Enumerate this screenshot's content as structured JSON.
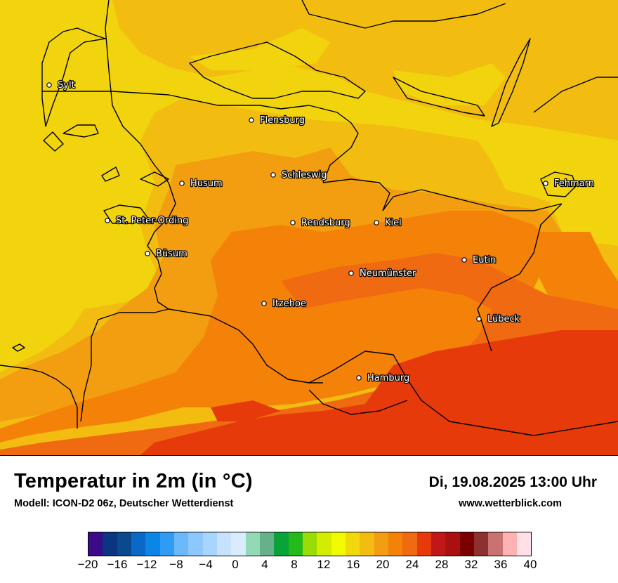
{
  "title": "Temperatur in 2m (in °C)",
  "subtitle": "Modell: ICON-D2 06z, Deutscher Wetterdienst",
  "datetime": "Di, 19.08.2025 13:00 Uhr",
  "website": "www.wetterblick.com",
  "cities": [
    {
      "name": "Sylt"
    },
    {
      "name": "Flensburg"
    },
    {
      "name": "Husum"
    },
    {
      "name": "Schleswig"
    },
    {
      "name": "Fehmarn"
    },
    {
      "name": "St. Peter-Ording"
    },
    {
      "name": "Rendsburg"
    },
    {
      "name": "Kiel"
    },
    {
      "name": "Büsum"
    },
    {
      "name": "Eutin"
    },
    {
      "name": "Neumünster"
    },
    {
      "name": "Itzehoe"
    },
    {
      "name": "Lübeck"
    },
    {
      "name": "Hamburg"
    }
  ],
  "legend": {
    "colors": [
      "#3a0a87",
      "#0a3580",
      "#0a4a8c",
      "#0a69c7",
      "#0a87e6",
      "#2e9cf5",
      "#6bb8fa",
      "#8cc8fb",
      "#a8d5fc",
      "#c6e2fd",
      "#d8ecfe",
      "#94d9b6",
      "#67b08c",
      "#0aa33a",
      "#24bb1a",
      "#99dd06",
      "#d4ec00",
      "#f2fa00",
      "#f0d80a",
      "#f2bd10",
      "#f29e10",
      "#f58208",
      "#f06a12",
      "#e63a0a",
      "#c01818",
      "#aa1010",
      "#7a0000",
      "#8c3030",
      "#c87272",
      "#ffb2b2",
      "#ffe0e6"
    ],
    "ticks": [
      "−20",
      "−16",
      "−12",
      "−8",
      "−4",
      "0",
      "4",
      "8",
      "12",
      "16",
      "20",
      "24",
      "28",
      "32",
      "36",
      "40"
    ]
  }
}
